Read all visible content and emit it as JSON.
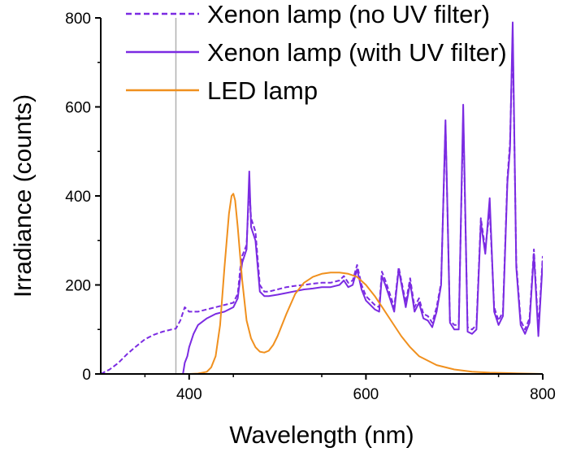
{
  "chart_data": {
    "type": "line",
    "xlabel": "Wavelength (nm)",
    "ylabel": "Irradiance (counts)",
    "xlim": [
      300,
      800
    ],
    "ylim": [
      0,
      800
    ],
    "x_ticks": [
      400,
      600,
      800
    ],
    "y_ticks": [
      0,
      200,
      400,
      600,
      800
    ],
    "grid": false,
    "legend_position": "top-right",
    "reference_line": {
      "x": 385,
      "color": "#b0b0b0"
    },
    "series": [
      {
        "name": "Xenon lamp (no UV filter)",
        "style": "dashed",
        "color": "#7b2be2",
        "x": [
          300,
          310,
          320,
          330,
          340,
          350,
          360,
          370,
          380,
          385,
          390,
          395,
          400,
          410,
          420,
          430,
          440,
          450,
          455,
          458,
          460,
          465,
          468,
          470,
          475,
          480,
          485,
          490,
          500,
          510,
          520,
          530,
          540,
          550,
          560,
          570,
          575,
          580,
          585,
          590,
          595,
          600,
          605,
          610,
          615,
          618,
          622,
          627,
          632,
          637,
          645,
          650,
          655,
          660,
          665,
          670,
          675,
          680,
          685,
          690,
          695,
          700,
          705,
          710,
          715,
          720,
          725,
          730,
          735,
          740,
          745,
          750,
          755,
          760,
          763,
          766,
          770,
          775,
          780,
          785,
          790,
          795,
          800
        ],
        "y": [
          0,
          10,
          25,
          45,
          62,
          78,
          88,
          95,
          100,
          102,
          120,
          150,
          140,
          140,
          145,
          150,
          155,
          160,
          180,
          240,
          265,
          290,
          420,
          350,
          320,
          200,
          185,
          185,
          190,
          195,
          198,
          200,
          203,
          205,
          205,
          210,
          220,
          205,
          210,
          245,
          200,
          175,
          165,
          155,
          150,
          230,
          210,
          180,
          150,
          240,
          160,
          215,
          150,
          170,
          135,
          130,
          115,
          150,
          205,
          560,
          120,
          110,
          110,
          580,
          105,
          100,
          110,
          350,
          280,
          370,
          150,
          120,
          140,
          440,
          520,
          760,
          250,
          120,
          100,
          125,
          280,
          100,
          265
        ]
      },
      {
        "name": "Xenon lamp (with UV filter)",
        "style": "solid",
        "color": "#7b2be2",
        "x": [
          393,
          395,
          398,
          400,
          405,
          410,
          420,
          430,
          440,
          450,
          455,
          458,
          460,
          465,
          468,
          470,
          475,
          480,
          485,
          490,
          500,
          510,
          520,
          530,
          540,
          550,
          560,
          570,
          575,
          580,
          585,
          590,
          595,
          600,
          605,
          610,
          615,
          618,
          622,
          627,
          632,
          637,
          645,
          650,
          655,
          660,
          665,
          670,
          675,
          680,
          685,
          690,
          695,
          700,
          705,
          710,
          715,
          720,
          725,
          730,
          735,
          740,
          745,
          750,
          755,
          760,
          763,
          766,
          770,
          775,
          780,
          785,
          790,
          795,
          800
        ],
        "y": [
          0,
          25,
          40,
          60,
          90,
          110,
          125,
          135,
          140,
          150,
          170,
          220,
          250,
          280,
          455,
          330,
          300,
          185,
          175,
          175,
          178,
          182,
          186,
          190,
          192,
          195,
          195,
          200,
          210,
          195,
          200,
          235,
          190,
          165,
          155,
          145,
          140,
          220,
          200,
          170,
          140,
          235,
          150,
          205,
          140,
          160,
          125,
          120,
          105,
          140,
          200,
          570,
          115,
          100,
          100,
          605,
          95,
          90,
          100,
          340,
          270,
          395,
          140,
          110,
          130,
          430,
          505,
          790,
          240,
          110,
          90,
          115,
          270,
          85,
          255
        ]
      },
      {
        "name": "LED lamp",
        "style": "solid",
        "color": "#f0901e",
        "x": [
          380,
          400,
          410,
          420,
          425,
          430,
          435,
          440,
          445,
          448,
          450,
          452,
          455,
          460,
          465,
          470,
          475,
          480,
          485,
          490,
          495,
          500,
          510,
          520,
          530,
          540,
          550,
          560,
          570,
          580,
          590,
          600,
          610,
          620,
          630,
          640,
          650,
          660,
          680,
          700,
          720,
          740,
          760,
          780,
          800
        ],
        "y": [
          0,
          0,
          1,
          5,
          15,
          40,
          110,
          240,
          360,
          400,
          405,
          390,
          330,
          210,
          120,
          80,
          60,
          50,
          48,
          52,
          65,
          85,
          135,
          180,
          205,
          218,
          225,
          228,
          228,
          225,
          218,
          200,
          175,
          145,
          115,
          85,
          60,
          40,
          20,
          10,
          5,
          3,
          2,
          1,
          0
        ]
      }
    ]
  }
}
